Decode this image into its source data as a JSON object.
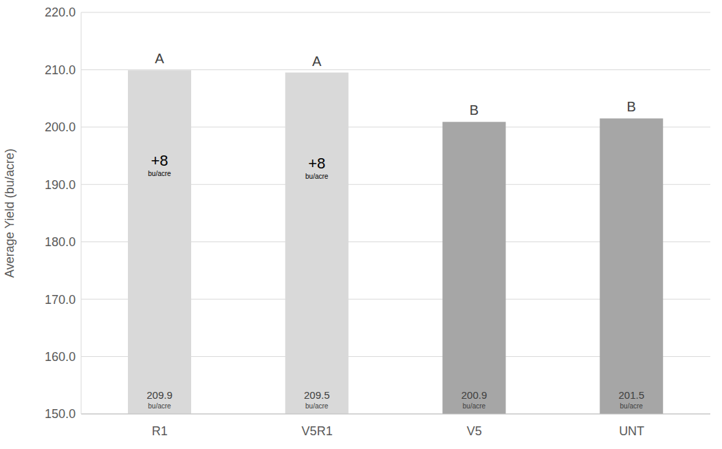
{
  "chart_data": {
    "type": "bar",
    "y_label": "Average Yield (bu/acre)",
    "categories": [
      "R1",
      "V5R1",
      "V5",
      "UNT"
    ],
    "values": [
      209.9,
      209.5,
      200.9,
      201.5
    ],
    "value_labels": [
      "209.9 bu/acre",
      "209.5 bu/acre",
      "200.9 bu/acre",
      "201.5 bu/acre"
    ],
    "data_labels": true,
    "colors": [
      "#d9d9d9",
      "#d9d9d9",
      "#a6a6a6",
      "#a6a6a6"
    ],
    "significance_letters": [
      "A",
      "A",
      "B",
      "B"
    ],
    "annotations": [
      {
        "category": "R1",
        "text": "+8 bu/acre"
      },
      {
        "category": "V5R1",
        "text": "+8 bu/acre"
      }
    ],
    "ylim": [
      150,
      220
    ],
    "yticks": [
      {
        "value": 150,
        "label": "150.0"
      },
      {
        "value": 160,
        "label": "160.0"
      },
      {
        "value": 170,
        "label": "170.0"
      },
      {
        "value": 180,
        "label": "180.0"
      },
      {
        "value": 190,
        "label": "190.0"
      },
      {
        "value": 200,
        "label": "200.0"
      },
      {
        "value": 210,
        "label": "210.0"
      },
      {
        "value": 220,
        "label": "220.0"
      }
    ],
    "grid": true
  }
}
